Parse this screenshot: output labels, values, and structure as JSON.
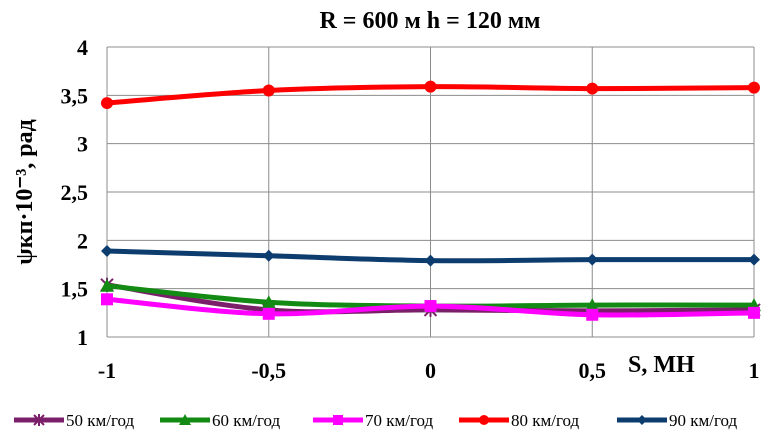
{
  "chart_data": {
    "type": "line",
    "title": "R = 600 м  h = 120 мм",
    "xlabel": "S, МН",
    "ylabel": "ψкп·10⁻³, рад",
    "x": [
      -1,
      -0.5,
      0,
      0.5,
      1
    ],
    "x_tick_labels": [
      "-1",
      "-0,5",
      "0",
      "0,5",
      "1"
    ],
    "y_tick_labels": [
      "1",
      "1,5",
      "2",
      "2,5",
      "3",
      "3,5",
      "4"
    ],
    "xlim": [
      -1,
      1
    ],
    "ylim": [
      1,
      4
    ],
    "y_ticks": [
      1,
      1.5,
      2,
      2.5,
      3,
      3.5,
      4
    ],
    "grid": true,
    "legend_position": "bottom",
    "series": [
      {
        "name": "50 км/год",
        "color": "#7b1f6b",
        "marker": "star",
        "values": [
          1.54,
          1.28,
          1.28,
          1.27,
          1.28
        ]
      },
      {
        "name": "60 км/год",
        "color": "#138a13",
        "marker": "triangle",
        "values": [
          1.53,
          1.36,
          1.32,
          1.33,
          1.33
        ]
      },
      {
        "name": "70 км/год",
        "color": "#ff00ff",
        "marker": "square",
        "values": [
          1.39,
          1.24,
          1.32,
          1.23,
          1.25
        ]
      },
      {
        "name": "80 км/год",
        "color": "#ff0000",
        "marker": "circle",
        "values": [
          3.42,
          3.55,
          3.59,
          3.57,
          3.58
        ]
      },
      {
        "name": "90 км/год",
        "color": "#0d3d6e",
        "marker": "diamond",
        "values": [
          1.89,
          1.84,
          1.79,
          1.8,
          1.8
        ]
      }
    ]
  }
}
